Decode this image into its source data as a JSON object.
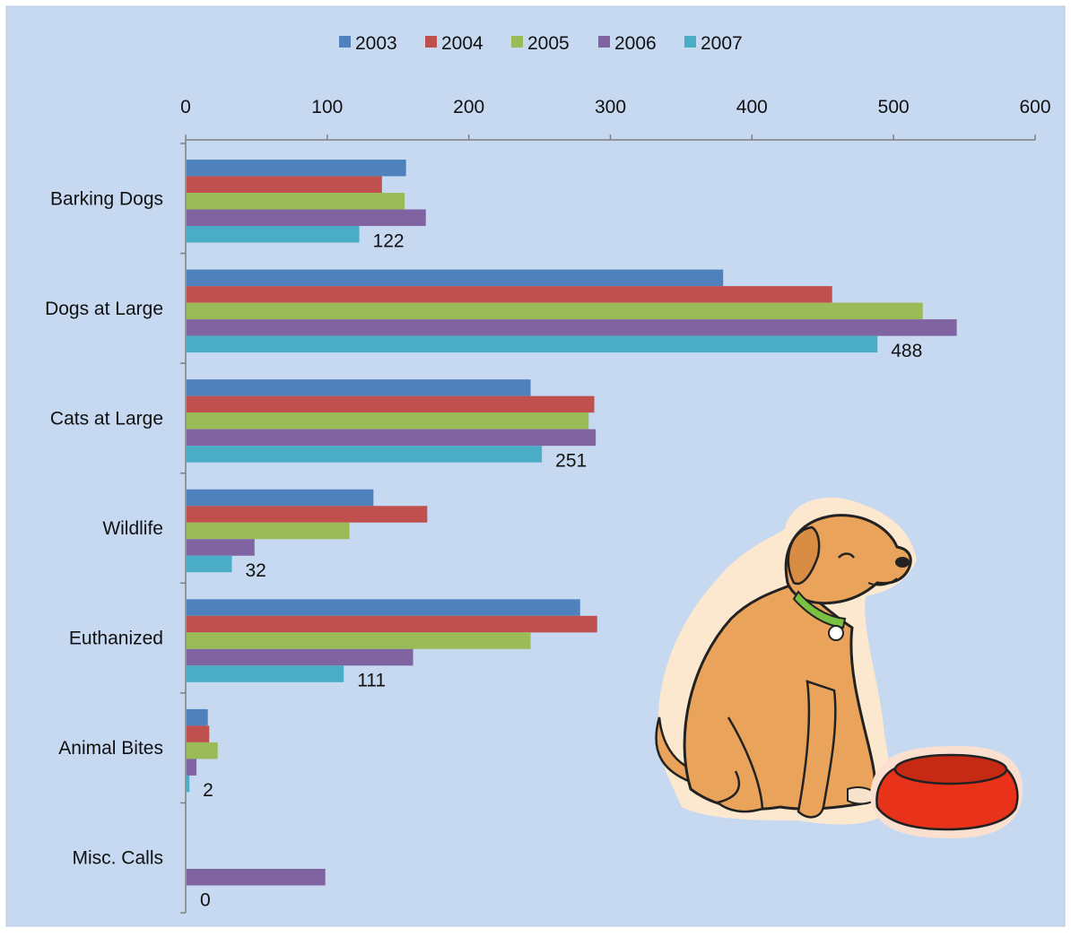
{
  "chart_data": {
    "type": "bar",
    "orientation": "horizontal",
    "title": "",
    "xlabel": "",
    "ylabel": "",
    "xlim": [
      0,
      600
    ],
    "x_ticks": [
      0,
      100,
      200,
      300,
      400,
      500,
      600
    ],
    "x_tick_labels": [
      "0",
      "100",
      "200",
      "300",
      "400",
      "500",
      "600"
    ],
    "axis_position": "top",
    "grid": false,
    "legend_position": "top",
    "background_color": "#c6d9f1",
    "categories": [
      "Barking Dogs",
      "Dogs at Large",
      "Cats at Large",
      "Wildlife",
      "Euthanized",
      "Animal Bites",
      "Misc. Calls"
    ],
    "series": [
      {
        "name": "2003",
        "color": "#4f81bd",
        "values": [
          155,
          379,
          243,
          132,
          278,
          15,
          0
        ]
      },
      {
        "name": "2004",
        "color": "#c0504d",
        "values": [
          138,
          456,
          288,
          170,
          290,
          16,
          0
        ]
      },
      {
        "name": "2005",
        "color": "#9bbb59",
        "values": [
          154,
          520,
          284,
          115,
          243,
          22,
          0
        ]
      },
      {
        "name": "2006",
        "color": "#8064a2",
        "values": [
          169,
          544,
          289,
          48,
          160,
          7,
          98
        ]
      },
      {
        "name": "2007",
        "color": "#4bacc6",
        "values": [
          122,
          488,
          251,
          32,
          111,
          2,
          0
        ]
      }
    ],
    "data_labels": {
      "series": "2007",
      "values": [
        "122",
        "488",
        "251",
        "32",
        "111",
        "2",
        "0"
      ]
    },
    "illustration": "dog-with-food-bowl"
  }
}
